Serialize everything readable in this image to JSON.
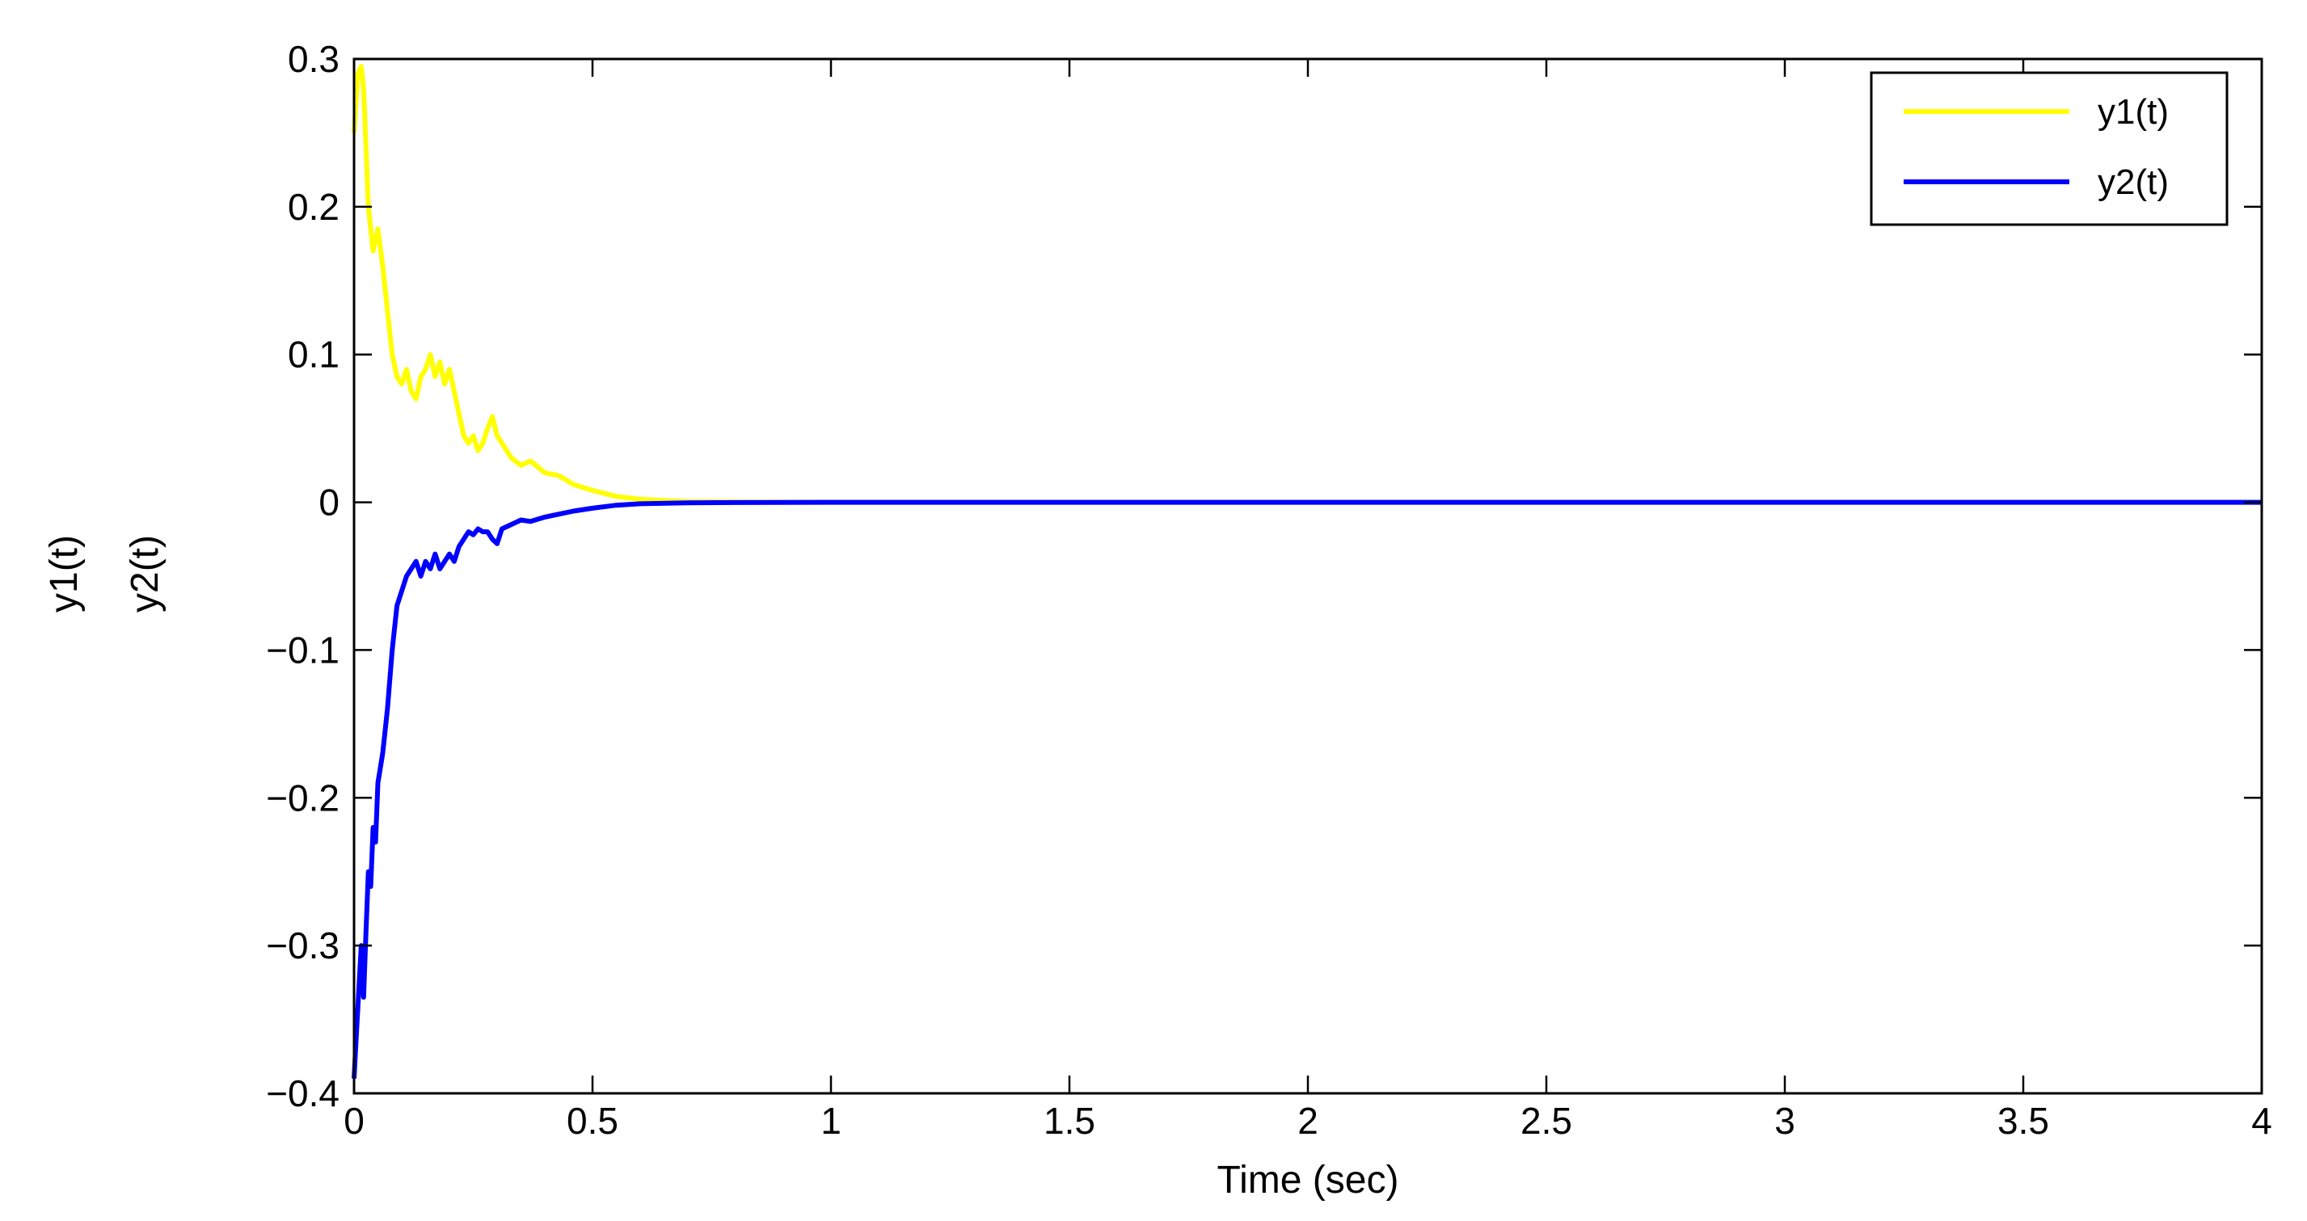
{
  "chart_data": {
    "type": "line",
    "title": "",
    "xlabel": "Time (sec)",
    "ylabel_lines": [
      "y1(t)",
      "y2(t)"
    ],
    "xlim": [
      0,
      4
    ],
    "ylim": [
      -0.4,
      0.3
    ],
    "xticks": [
      0,
      0.5,
      1,
      1.5,
      2,
      2.5,
      3,
      3.5,
      4
    ],
    "xtick_labels": [
      "0",
      "0.5",
      "1",
      "1.5",
      "2",
      "2.5",
      "3",
      "3.5",
      "4"
    ],
    "yticks": [
      0.3,
      0.2,
      0.1,
      0,
      -0.1,
      -0.2,
      -0.3,
      -0.4
    ],
    "ytick_labels": [
      "0.3",
      "0.2",
      "0.1",
      "0",
      "−0.1",
      "−0.2",
      "−0.3",
      "−0.4"
    ],
    "grid": false,
    "legend_position": "top-right",
    "series": [
      {
        "name": "y1(t)",
        "color": "#ffff00",
        "x": [
          0,
          0.008,
          0.015,
          0.02,
          0.025,
          0.03,
          0.04,
          0.05,
          0.06,
          0.07,
          0.08,
          0.09,
          0.1,
          0.11,
          0.12,
          0.13,
          0.14,
          0.15,
          0.16,
          0.17,
          0.18,
          0.19,
          0.2,
          0.21,
          0.22,
          0.23,
          0.24,
          0.25,
          0.26,
          0.27,
          0.28,
          0.29,
          0.3,
          0.31,
          0.32,
          0.33,
          0.35,
          0.37,
          0.4,
          0.43,
          0.46,
          0.5,
          0.55,
          0.6,
          0.7,
          0.8,
          1.0,
          1.5,
          2.0,
          2.5,
          3.0,
          3.5,
          4.0
        ],
        "y": [
          0.25,
          0.29,
          0.295,
          0.28,
          0.24,
          0.2,
          0.17,
          0.185,
          0.16,
          0.13,
          0.1,
          0.085,
          0.08,
          0.09,
          0.075,
          0.07,
          0.085,
          0.09,
          0.1,
          0.085,
          0.095,
          0.08,
          0.09,
          0.075,
          0.06,
          0.045,
          0.04,
          0.045,
          0.035,
          0.04,
          0.05,
          0.058,
          0.045,
          0.04,
          0.035,
          0.03,
          0.025,
          0.028,
          0.02,
          0.018,
          0.012,
          0.008,
          0.004,
          0.002,
          0.0005,
          0.0002,
          0,
          0,
          0,
          0,
          0,
          0,
          0
        ]
      },
      {
        "name": "y2(t)",
        "color": "#0000ff",
        "x": [
          0,
          0.005,
          0.01,
          0.015,
          0.02,
          0.025,
          0.03,
          0.035,
          0.04,
          0.045,
          0.05,
          0.06,
          0.07,
          0.08,
          0.09,
          0.1,
          0.11,
          0.12,
          0.13,
          0.14,
          0.15,
          0.16,
          0.17,
          0.18,
          0.19,
          0.2,
          0.21,
          0.22,
          0.23,
          0.24,
          0.25,
          0.26,
          0.27,
          0.28,
          0.29,
          0.3,
          0.31,
          0.33,
          0.35,
          0.37,
          0.4,
          0.43,
          0.46,
          0.5,
          0.55,
          0.6,
          0.7,
          0.8,
          1.0,
          1.5,
          2.0,
          2.5,
          3.0,
          3.5,
          4.0
        ],
        "y": [
          -0.39,
          -0.36,
          -0.33,
          -0.3,
          -0.335,
          -0.29,
          -0.25,
          -0.26,
          -0.22,
          -0.23,
          -0.19,
          -0.17,
          -0.14,
          -0.1,
          -0.07,
          -0.06,
          -0.05,
          -0.045,
          -0.04,
          -0.05,
          -0.04,
          -0.045,
          -0.035,
          -0.045,
          -0.04,
          -0.035,
          -0.04,
          -0.03,
          -0.025,
          -0.02,
          -0.022,
          -0.018,
          -0.02,
          -0.02,
          -0.025,
          -0.028,
          -0.018,
          -0.015,
          -0.012,
          -0.013,
          -0.01,
          -0.008,
          -0.006,
          -0.004,
          -0.002,
          -0.001,
          -0.0004,
          -0.0002,
          0,
          0,
          0,
          0,
          0,
          0,
          0
        ]
      }
    ]
  }
}
